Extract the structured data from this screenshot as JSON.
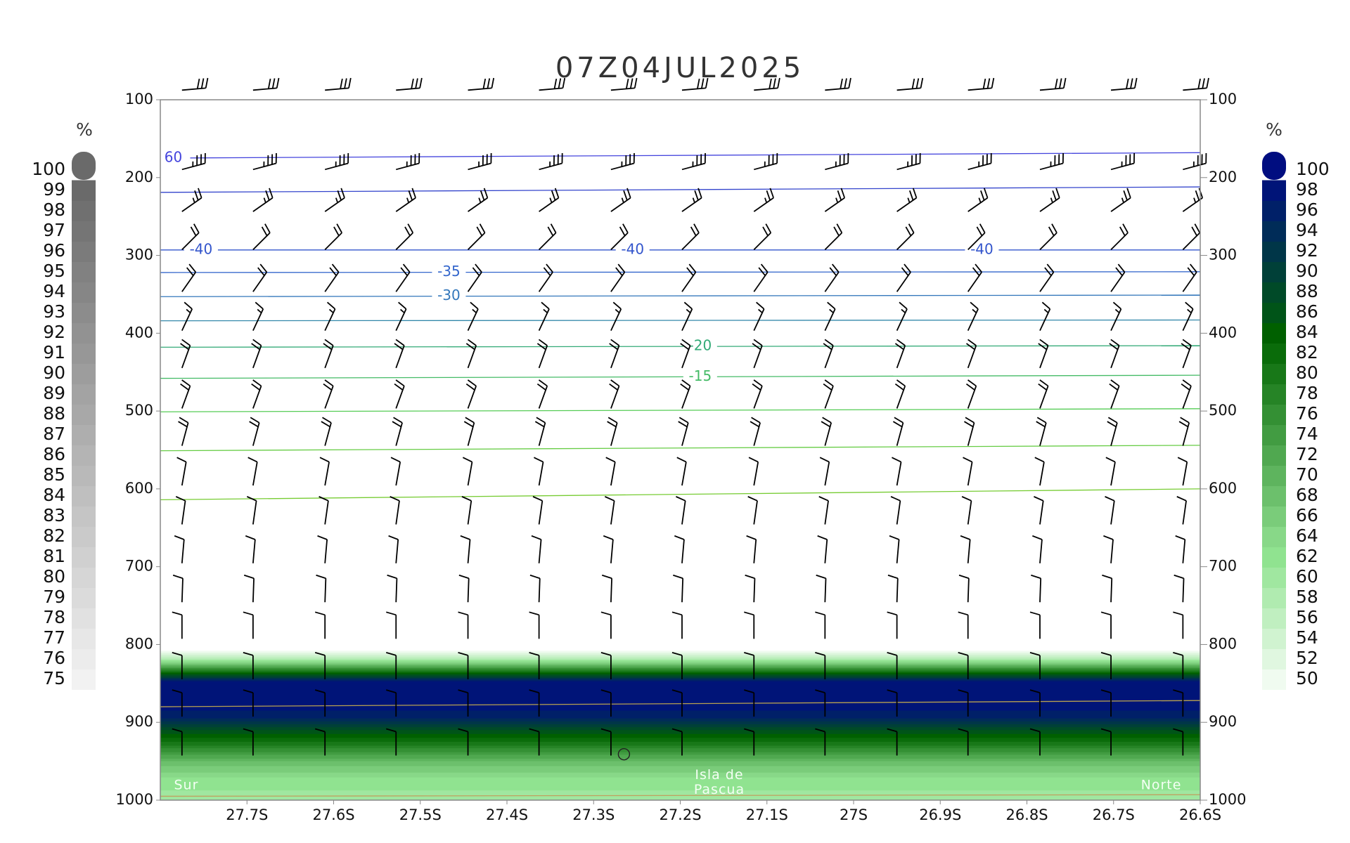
{
  "chart_data": {
    "type": "cross-section",
    "title": "07Z04JUL2025",
    "xlim": [
      -27.8,
      -26.6
    ],
    "xticks": [
      {
        "value": -27.7,
        "label": "27.7S"
      },
      {
        "value": -27.6,
        "label": "27.6S"
      },
      {
        "value": -27.5,
        "label": "27.5S"
      },
      {
        "value": -27.4,
        "label": "27.4S"
      },
      {
        "value": -27.3,
        "label": "27.3S"
      },
      {
        "value": -27.2,
        "label": "27.2S"
      },
      {
        "value": -27.1,
        "label": "27.1S"
      },
      {
        "value": -27,
        "label": "27S"
      },
      {
        "value": -26.9,
        "label": "26.9S"
      },
      {
        "value": -26.8,
        "label": "26.8S"
      },
      {
        "value": -26.7,
        "label": "26.7S"
      },
      {
        "value": -26.6,
        "label": "26.6S"
      }
    ],
    "ylim": [
      100,
      1000
    ],
    "yticks": [
      100,
      200,
      300,
      400,
      500,
      600,
      700,
      800,
      900,
      1000
    ],
    "y2lim": [
      100,
      1000
    ],
    "y2ticks": [
      100,
      200,
      300,
      400,
      500,
      600,
      700,
      800,
      900,
      1000
    ],
    "colorbar_left": {
      "label": "%",
      "ticks": [
        75,
        76,
        77,
        78,
        79,
        80,
        81,
        82,
        83,
        84,
        85,
        86,
        87,
        88,
        89,
        90,
        91,
        92,
        93,
        94,
        95,
        96,
        97,
        98,
        99,
        100
      ],
      "color_from": "#f2f2f2",
      "color_to": "#6a6a6a"
    },
    "colorbar_right": {
      "label": "%",
      "ticks": [
        50,
        52,
        54,
        56,
        58,
        60,
        62,
        64,
        66,
        68,
        70,
        72,
        74,
        76,
        78,
        80,
        82,
        84,
        86,
        88,
        90,
        92,
        94,
        96,
        98,
        100
      ],
      "colors": [
        "#f0fbf0",
        "#e0f7e0",
        "#d0f3d0",
        "#c0efc0",
        "#b0ebb0",
        "#a0e7a0",
        "#90e390",
        "#88d888",
        "#7acc7a",
        "#6cc06c",
        "#5eb45e",
        "#50a850",
        "#429c42",
        "#349034",
        "#268426",
        "#187818",
        "#0a6c0a",
        "#006000",
        "#005418",
        "#004a28",
        "#004038",
        "#003648",
        "#002c58",
        "#002068",
        "#001478"
      ],
      "cap_color": "#000d80"
    },
    "rh": {
      "p": [
        808,
        818,
        828,
        838,
        848,
        880,
        895,
        910,
        930,
        950,
        975,
        1000
      ],
      "values": [
        50,
        58,
        72,
        86,
        99,
        99,
        96,
        88,
        80,
        70,
        63,
        61
      ]
    },
    "contours": [
      {
        "color": "#4444dd",
        "p": [
          175,
          168
        ],
        "labels": [
          {
            "text": "60",
            "x": -27.785
          }
        ]
      },
      {
        "color": "#3344cc",
        "p": [
          219,
          212
        ],
        "labels": []
      },
      {
        "color": "#3355cc",
        "p": [
          293,
          293
        ],
        "labels": [
          {
            "text": "-40",
            "x": -27.753
          },
          {
            "text": "-40",
            "x": -27.255
          },
          {
            "text": "-40",
            "x": -26.852
          }
        ]
      },
      {
        "color": "#3366cc",
        "p": [
          322,
          321
        ],
        "labels": [
          {
            "text": "-35",
            "x": -27.467
          }
        ]
      },
      {
        "color": "#3377bb",
        "p": [
          353,
          351
        ],
        "labels": [
          {
            "text": "-30",
            "x": -27.467
          }
        ]
      },
      {
        "color": "#3388aa",
        "p": [
          384,
          383
        ],
        "labels": []
      },
      {
        "color": "#33aa77",
        "p": [
          418,
          416
        ],
        "labels": [
          {
            "text": "-20",
            "x": -27.177
          }
        ]
      },
      {
        "color": "#44bb66",
        "p": [
          458,
          454
        ],
        "labels": [
          {
            "text": "-15",
            "x": -27.177
          }
        ]
      },
      {
        "color": "#55cc55",
        "p": [
          501,
          497
        ],
        "labels": []
      },
      {
        "color": "#66cc44",
        "p": [
          551,
          544
        ],
        "labels": []
      },
      {
        "color": "#77cc33",
        "p": [
          614,
          600
        ],
        "labels": []
      },
      {
        "color": "#b8a050",
        "p": [
          880,
          872
        ],
        "labels": []
      },
      {
        "color": "#c0a060",
        "p": [
          995,
          993
        ],
        "labels": []
      }
    ],
    "wind": {
      "lats": [
        -27.775,
        -27.693,
        -27.61,
        -27.528,
        -27.445,
        -27.363,
        -27.28,
        -27.198,
        -27.115,
        -27.033,
        -26.95,
        -26.868,
        -26.785,
        -26.703,
        -26.62
      ],
      "levels": [
        103,
        205,
        259,
        308,
        362,
        412,
        460,
        512,
        560,
        611,
        661,
        711,
        761,
        808,
        860,
        908,
        958
      ],
      "dir": [
        265,
        255,
        235,
        225,
        215,
        205,
        200,
        200,
        195,
        190,
        188,
        185,
        182,
        180,
        180,
        180,
        180
      ],
      "speed": [
        30,
        35,
        25,
        20,
        20,
        15,
        20,
        20,
        20,
        10,
        10,
        10,
        10,
        10,
        10,
        10,
        10
      ]
    },
    "marker": {
      "x": -27.265,
      "p": 941
    },
    "annotations": [
      {
        "text": "Sur",
        "x": -27.77,
        "p": 981
      },
      {
        "text": "Isla de",
        "x": -27.155,
        "p": 968
      },
      {
        "text": "Pascua",
        "x": -27.155,
        "p": 987
      },
      {
        "text": "Norte",
        "x": -26.645,
        "p": 981
      }
    ]
  }
}
